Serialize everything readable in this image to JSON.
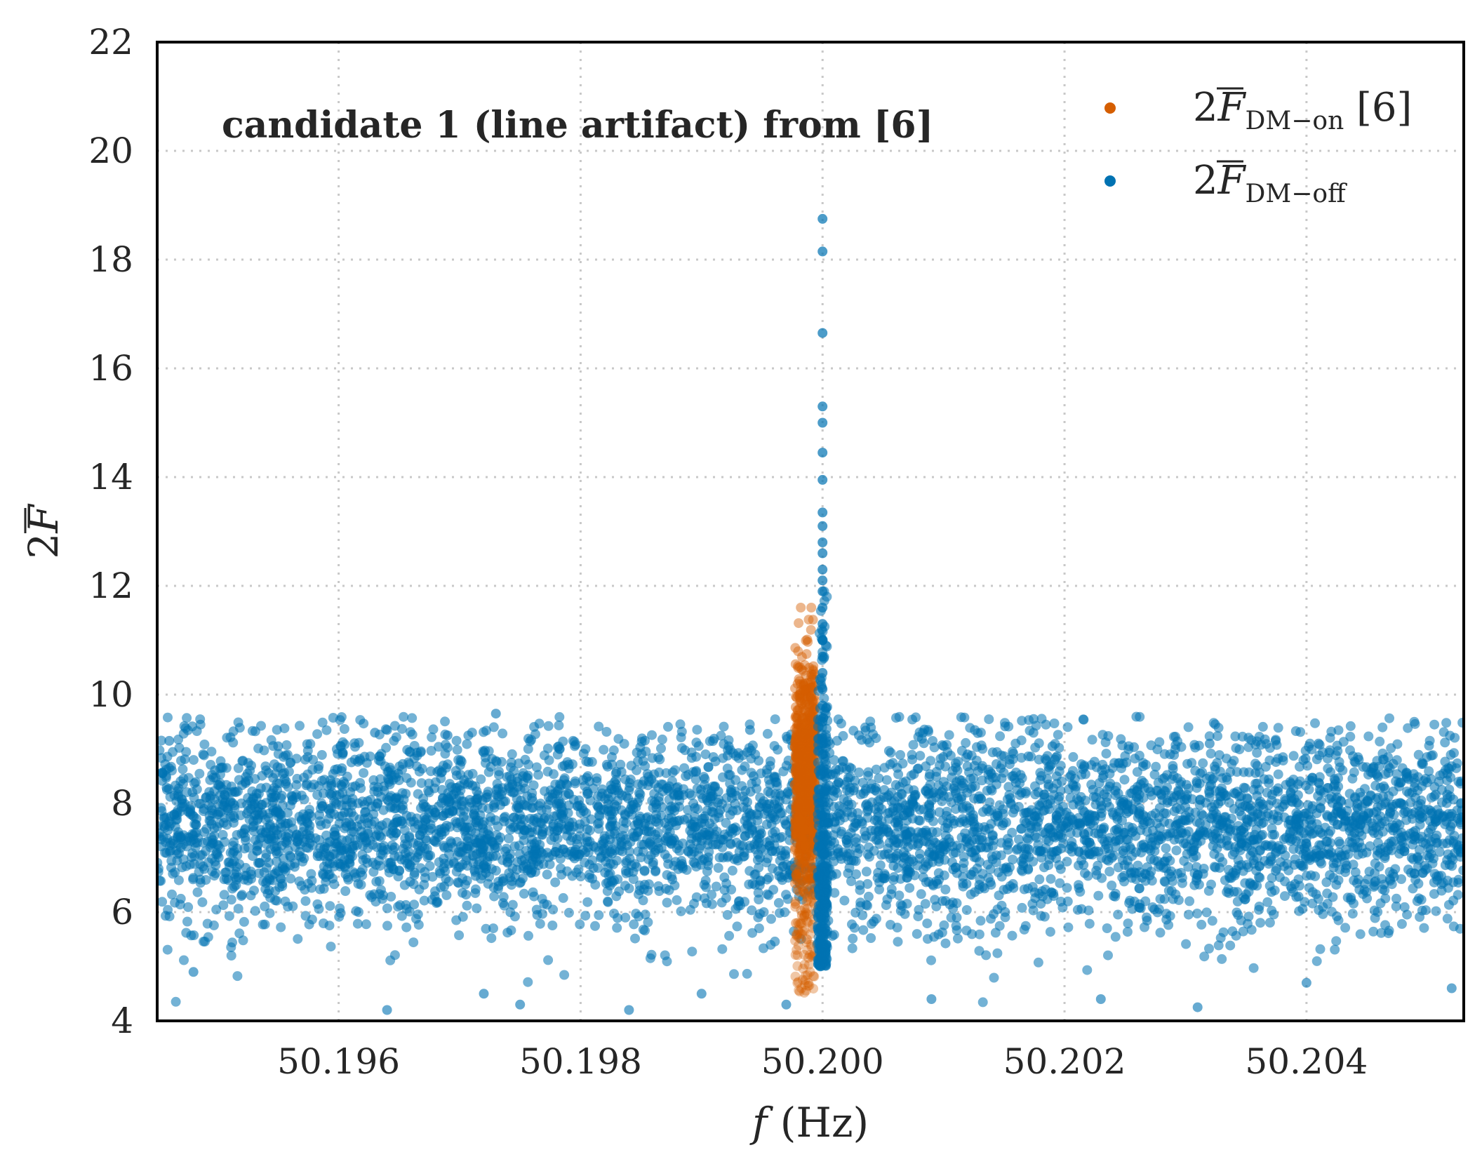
{
  "chart_data": {
    "type": "scatter",
    "annotation": "candidate 1 (line artifact) from [6]",
    "xlabel": {
      "italic": "f",
      "rest": " (Hz)"
    },
    "ylabel": "2F",
    "xlim": [
      50.1945,
      50.2053
    ],
    "ylim": [
      4,
      22
    ],
    "x_ticks": [
      "50.196",
      "50.198",
      "50.200",
      "50.202",
      "50.204"
    ],
    "x_tick_values": [
      50.196,
      50.198,
      50.2,
      50.202,
      50.204
    ],
    "y_ticks": [
      "4",
      "6",
      "8",
      "10",
      "12",
      "14",
      "16",
      "18",
      "20",
      "22"
    ],
    "y_tick_values": [
      4,
      6,
      8,
      10,
      12,
      14,
      16,
      18,
      20,
      22
    ],
    "grid": true,
    "legend_position": "top-right",
    "legend": [
      {
        "prefix": "2",
        "symbol": "F",
        "subscript": "DM−on",
        "suffix": " [6]"
      },
      {
        "prefix": "2",
        "symbol": "F",
        "subscript": "DM−off",
        "suffix": ""
      }
    ],
    "series": [
      {
        "name": "2F DM-off",
        "color": "#0072b2",
        "background_band": {
          "x_range": [
            50.1945,
            50.2053
          ],
          "center": 7.6,
          "spread": 0.9,
          "low": 4.2,
          "high": 9.6
        },
        "spike": {
          "x": 50.2,
          "points": [
            [
              50.2,
              18.75
            ],
            [
              50.2,
              18.15
            ],
            [
              50.2,
              16.65
            ],
            [
              50.2,
              15.3
            ],
            [
              50.2,
              15.0
            ],
            [
              50.2,
              14.45
            ],
            [
              50.2,
              13.95
            ],
            [
              50.2,
              13.35
            ],
            [
              50.2,
              13.1
            ],
            [
              50.2,
              12.8
            ],
            [
              50.2,
              12.6
            ],
            [
              50.2,
              12.3
            ],
            [
              50.2,
              12.1
            ],
            [
              50.2,
              11.9
            ],
            [
              50.2,
              11.6
            ],
            [
              50.2,
              11.3
            ],
            [
              50.2,
              11.0
            ],
            [
              50.2,
              10.7
            ],
            [
              50.2,
              10.4
            ],
            [
              50.2,
              10.1
            ],
            [
              50.2,
              9.8
            ],
            [
              50.2,
              9.5
            ],
            [
              50.2,
              9.2
            ],
            [
              50.2,
              8.9
            ]
          ]
        },
        "outliers": [
          [
            50.1964,
            9.35
          ],
          [
            50.1963,
            9.3
          ],
          [
            50.1973,
            9.65
          ],
          [
            50.1969,
            9.25
          ],
          [
            50.1994,
            9.35
          ],
          [
            50.2003,
            9.25
          ],
          [
            50.2032,
            9.1
          ],
          [
            50.2041,
            9.1
          ],
          [
            50.1955,
            9.05
          ],
          [
            50.1946,
            9.15
          ],
          [
            50.2019,
            9.05
          ],
          [
            50.2012,
            8.9
          ],
          [
            50.1964,
            4.2
          ],
          [
            50.1975,
            4.3
          ],
          [
            50.1984,
            4.2
          ],
          [
            50.1997,
            4.3
          ],
          [
            50.2031,
            4.25
          ],
          [
            50.2023,
            4.4
          ],
          [
            50.2009,
            4.4
          ],
          [
            50.1972,
            4.5
          ],
          [
            50.1948,
            4.9
          ],
          [
            50.2052,
            4.6
          ],
          [
            50.199,
            4.5
          ],
          [
            50.204,
            4.7
          ]
        ]
      },
      {
        "name": "2F DM-on [6]",
        "color": "#d55e00",
        "cluster": {
          "x_range": [
            50.19977,
            50.19994
          ],
          "y_range": [
            4.5,
            11.6
          ]
        }
      }
    ]
  }
}
